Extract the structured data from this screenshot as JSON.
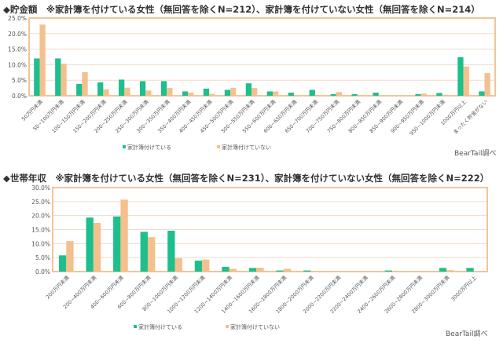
{
  "colors": {
    "kept": "#1dbf8c",
    "not_kept": "#f4c08e",
    "frame": "#f2c49a",
    "grid": "#f1dccb"
  },
  "chart_data": [
    {
      "type": "bar",
      "title": "◆貯金額　※家計簿を付けている女性（無回答を除くN=212）、家計簿を付けていない女性（無回答を除くN=214）",
      "ylim": [
        0,
        25
      ],
      "yticks": [
        "0.0%",
        "5.0%",
        "10.0%",
        "15.0%",
        "20.0%",
        "25.0%"
      ],
      "legend": "bottom",
      "source": "BearTail調べ",
      "categories": [
        "50万円未満",
        "50~100万円未満",
        "100~150万円未満",
        "150~200万円未満",
        "200~250万円未満",
        "250~300万円未満",
        "300~350万円未満",
        "350~400万円未満",
        "400~450万円未満",
        "450~500万円未満",
        "500~550万円未満",
        "550~600万円未満",
        "600~650万円未満",
        "650~700万円未満",
        "700~750万円未満",
        "750~800万円未満",
        "800~850万円未満",
        "850~900万円未満",
        "900~950万円未満",
        "950~1000万円未満",
        "1000万円以上",
        "まったく貯金がない"
      ],
      "series": [
        {
          "name": "家計簿付けている",
          "values": [
            12.0,
            12.0,
            3.8,
            4.3,
            5.2,
            4.7,
            4.7,
            1.4,
            2.3,
            1.9,
            4.0,
            1.4,
            1.0,
            1.9,
            0.5,
            0.5,
            1.0,
            0,
            0.5,
            0.9,
            12.4,
            1.4
          ]
        },
        {
          "name": "家計簿付けていない",
          "values": [
            22.9,
            10.3,
            7.6,
            2.1,
            2.6,
            1.7,
            2.5,
            1.0,
            0.6,
            2.5,
            2.5,
            1.4,
            0,
            0.3,
            1.2,
            0.3,
            0,
            0,
            0.7,
            0.3,
            9.4,
            7.3
          ]
        }
      ]
    },
    {
      "type": "bar",
      "title": "◆世帯年収　※家計簿を付けている女性（無回答を除くN=231）、家計簿を付けていない女性（無回答を除くN=222）",
      "ylim": [
        0,
        30
      ],
      "yticks": [
        "0.0%",
        "5.0%",
        "10.0%",
        "15.0%",
        "20.0%",
        "25.0%",
        "30.0%"
      ],
      "legend": "bottom",
      "source": "BearTail調べ",
      "categories": [
        "200万円未満",
        "200~400万円未満",
        "400~600万円未満",
        "600~800万円未満",
        "800~1000万円未満",
        "1000~1200万円未満",
        "1200~1400万円未満",
        "1400~1600万円未満",
        "1600~1800万円未満",
        "1800~2000万円未満",
        "2000~2200万円未満",
        "2200~2400万円未満",
        "2400~2600万円未満",
        "2600~2800万円未満",
        "2800~3000万円未満",
        "3000万円以上"
      ],
      "series": [
        {
          "name": "家計簿付けている",
          "values": [
            5.8,
            19.3,
            19.7,
            14.2,
            14.6,
            3.9,
            1.7,
            1.3,
            0.4,
            0.4,
            0,
            0,
            0.4,
            0,
            1.3,
            1.3
          ]
        },
        {
          "name": "家計簿付けていない",
          "values": [
            10.9,
            17.4,
            25.7,
            12.3,
            4.8,
            4.3,
            1.0,
            1.4,
            1.0,
            0,
            0,
            0,
            0,
            0,
            0.5,
            0
          ]
        }
      ]
    }
  ]
}
